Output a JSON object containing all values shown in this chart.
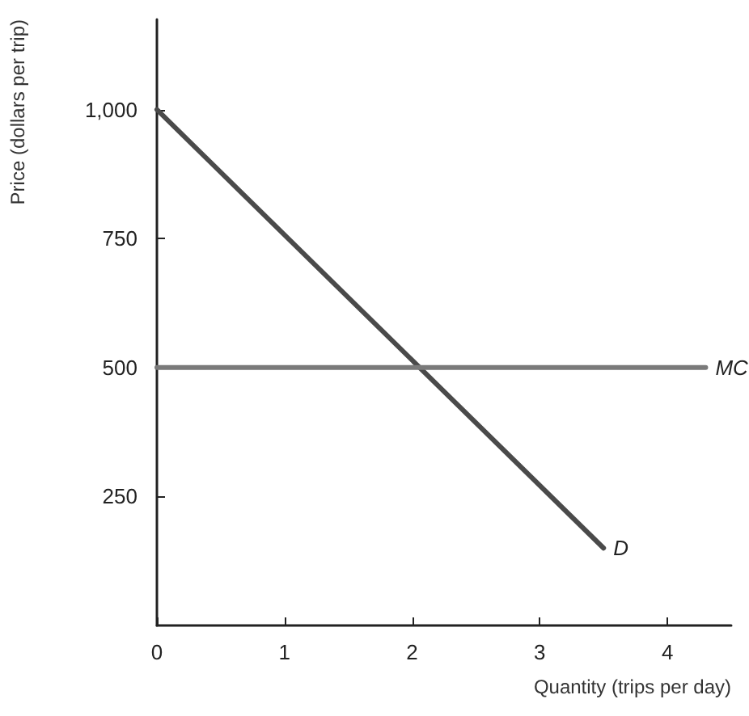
{
  "chart_data": {
    "type": "line",
    "xlabel": "Quantity (trips per day)",
    "ylabel": "Price (dollars per trip)",
    "series": [
      {
        "name": "D",
        "color": "#4a4a4a",
        "x": [
          0,
          3.5
        ],
        "values": [
          1000,
          150
        ]
      },
      {
        "name": "MC",
        "color": "#7a7a7a",
        "x": [
          0,
          4.3
        ],
        "values": [
          500,
          500
        ]
      }
    ],
    "xlim": [
      0,
      4.5
    ],
    "xticks": [
      0,
      1,
      2,
      3,
      4
    ],
    "ylim": [
      0,
      1175
    ],
    "yticks": [
      250,
      500,
      750,
      {
        "value": 1000,
        "label": "1,000"
      }
    ],
    "grid": false,
    "legend": false,
    "marker": "none",
    "line_style": "solid"
  }
}
